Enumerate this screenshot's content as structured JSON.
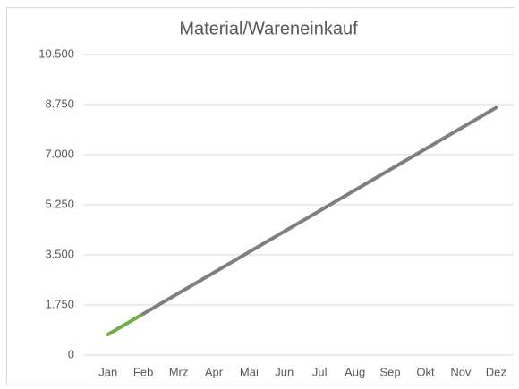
{
  "chart_data": {
    "type": "line",
    "title": "Material/Wareneinkauf",
    "categories": [
      "Jan",
      "Feb",
      "Mrz",
      "Apr",
      "Mai",
      "Jun",
      "Jul",
      "Aug",
      "Sep",
      "Okt",
      "Nov",
      "Dez"
    ],
    "series": [
      {
        "color": "#70ad47",
        "values": [
          720,
          1440,
          null,
          null,
          null,
          null,
          null,
          null,
          null,
          null,
          null,
          null
        ]
      },
      {
        "color": "#7f7f7f",
        "values": [
          null,
          1440,
          2160,
          2880,
          3600,
          4320,
          5040,
          5760,
          6480,
          7200,
          7920,
          8640
        ]
      }
    ],
    "ylim": [
      0,
      10500
    ],
    "yticks": [
      0,
      {
        "value": 1750,
        "label": "1.750"
      },
      {
        "value": 3500,
        "label": "3.500"
      },
      {
        "value": 5250,
        "label": "5.250"
      },
      {
        "value": 7000,
        "label": "7.000"
      },
      {
        "value": 8750,
        "label": "8.750"
      },
      {
        "value": 10500,
        "label": "10.500"
      }
    ],
    "grid": true
  }
}
